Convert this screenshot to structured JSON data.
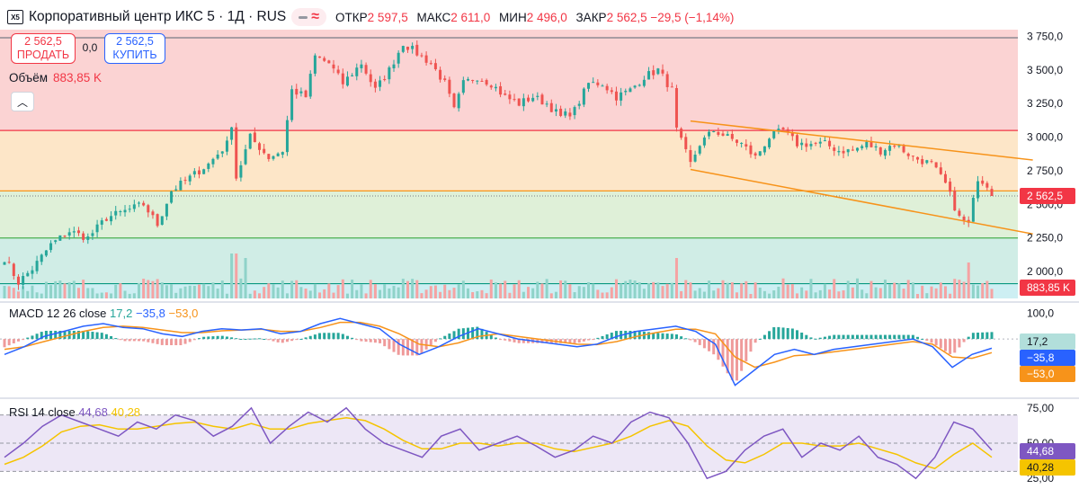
{
  "header": {
    "logo_text": "X5",
    "title": "Корпоративный центр ИКС 5 · 1Д · RUS",
    "ohlc": [
      {
        "key": "ОТКР",
        "value": "2 597,5"
      },
      {
        "key": "МАКС",
        "value": "2 611,0"
      },
      {
        "key": "МИН",
        "value": "2 496,0"
      },
      {
        "key": "ЗАКР",
        "value": "2 562,5 −29,5 (−1,14%)"
      }
    ]
  },
  "trade": {
    "sell_price": "2 562,5",
    "sell_label": "ПРОДАТЬ",
    "buy_price": "2 562,5",
    "buy_label": "КУПИТЬ",
    "spread": "0,0"
  },
  "volume_legend": {
    "label": "Объём",
    "value": "883,85 K"
  },
  "macd_legend": {
    "label": "MACD 12 26 close",
    "hist": "17,2",
    "macd": "−35,8",
    "signal": "−53,0"
  },
  "rsi_legend": {
    "label": "RSI 14 close",
    "rsi": "44,68",
    "ma": "40,28"
  },
  "colors": {
    "up": "#26a69a",
    "down": "#ef5350",
    "accent": "#2962ff",
    "orange": "#f7931a",
    "purple": "#7e57c2",
    "yellow": "#f5c400"
  },
  "chart_data": [
    {
      "type": "candlestick",
      "title": "Корпоративный центр ИКС 5 · 1Д",
      "ylim": [
        1800,
        3800
      ],
      "y_ticks": [
        {
          "value": 3750,
          "label": "3 750,0"
        },
        {
          "value": 3500,
          "label": "3 500,0"
        },
        {
          "value": 3250,
          "label": "3 250,0"
        },
        {
          "value": 3000,
          "label": "3 000,0"
        },
        {
          "value": 2750,
          "label": "2 750,0"
        },
        {
          "value": 2500,
          "label": "2 500,0"
        },
        {
          "value": 2250,
          "label": "2 250,0"
        },
        {
          "value": 2000,
          "label": "2 000,0"
        }
      ],
      "last_price": {
        "value": 2562.5,
        "label": "2 562,5"
      },
      "horizontal_levels": [
        {
          "value": 3740,
          "color": "#787b86"
        },
        {
          "value": 3050,
          "color": "#f23645"
        },
        {
          "value": 2600,
          "color": "#f7931a"
        },
        {
          "value": 2250,
          "color": "#4caf50"
        },
        {
          "value": 1910,
          "color": "#089981"
        }
      ],
      "zones": [
        {
          "from": 3050,
          "to": 3800,
          "color": "#fbd3d3"
        },
        {
          "from": 2600,
          "to": 3050,
          "color": "#fde6c8"
        },
        {
          "from": 2250,
          "to": 2600,
          "color": "#dff0d8"
        },
        {
          "from": 1910,
          "to": 2250,
          "color": "#d0ede6"
        },
        {
          "from": 1800,
          "to": 1910,
          "color": "#cdeff3"
        }
      ],
      "channel_upper": {
        "x": [
          148,
          217
        ],
        "y": [
          3120,
          2830
        ]
      },
      "channel_lower": {
        "x": [
          148,
          217
        ],
        "y": [
          2760,
          2280
        ]
      },
      "anchors": [
        [
          0,
          2100
        ],
        [
          3,
          1920
        ],
        [
          6,
          2020
        ],
        [
          10,
          2200
        ],
        [
          14,
          2300
        ],
        [
          18,
          2250
        ],
        [
          22,
          2400
        ],
        [
          26,
          2450
        ],
        [
          30,
          2500
        ],
        [
          33,
          2350
        ],
        [
          36,
          2600
        ],
        [
          40,
          2700
        ],
        [
          44,
          2800
        ],
        [
          48,
          2950
        ],
        [
          49,
          3100
        ],
        [
          50,
          2700
        ],
        [
          53,
          3000
        ],
        [
          57,
          2850
        ],
        [
          60,
          2900
        ],
        [
          62,
          3350
        ],
        [
          65,
          3300
        ],
        [
          67,
          3600
        ],
        [
          70,
          3550
        ],
        [
          73,
          3400
        ],
        [
          77,
          3550
        ],
        [
          80,
          3350
        ],
        [
          83,
          3500
        ],
        [
          86,
          3700
        ],
        [
          88,
          3650
        ],
        [
          90,
          3600
        ],
        [
          92,
          3550
        ],
        [
          95,
          3400
        ],
        [
          97,
          3200
        ],
        [
          99,
          3400
        ],
        [
          102,
          3450
        ],
        [
          105,
          3400
        ],
        [
          108,
          3300
        ],
        [
          111,
          3250
        ],
        [
          114,
          3300
        ],
        [
          117,
          3250
        ],
        [
          120,
          3150
        ],
        [
          123,
          3200
        ],
        [
          126,
          3400
        ],
        [
          129,
          3400
        ],
        [
          132,
          3300
        ],
        [
          135,
          3350
        ],
        [
          138,
          3450
        ],
        [
          141,
          3500
        ],
        [
          144,
          3350
        ],
        [
          145,
          3050
        ],
        [
          148,
          2800
        ],
        [
          150,
          2950
        ],
        [
          153,
          3050
        ],
        [
          156,
          3000
        ],
        [
          159,
          2950
        ],
        [
          162,
          2850
        ],
        [
          165,
          3000
        ],
        [
          168,
          3050
        ],
        [
          171,
          2950
        ],
        [
          174,
          2950
        ],
        [
          177,
          2950
        ],
        [
          180,
          2900
        ],
        [
          183,
          2900
        ],
        [
          186,
          2950
        ],
        [
          189,
          2900
        ],
        [
          192,
          2950
        ],
        [
          196,
          2850
        ],
        [
          200,
          2800
        ],
        [
          203,
          2650
        ],
        [
          206,
          2400
        ],
        [
          208,
          2350
        ],
        [
          210,
          2700
        ],
        [
          212,
          2650
        ],
        [
          213,
          2562
        ]
      ]
    },
    {
      "type": "volume",
      "value_label": "883,85 K"
    },
    {
      "type": "macd",
      "ylim": [
        -220,
        130
      ],
      "y_ticks": [
        {
          "value": 100,
          "label": "100,0"
        }
      ],
      "last_labels": {
        "hist": "17,2",
        "macd": "−35,8",
        "signal": "−53,0"
      },
      "macd_values": [
        -60,
        -30,
        10,
        30,
        50,
        60,
        45,
        40,
        20,
        10,
        30,
        40,
        35,
        40,
        20,
        30,
        60,
        80,
        60,
        40,
        -20,
        -60,
        -30,
        10,
        40,
        20,
        0,
        -10,
        -20,
        -30,
        -20,
        10,
        30,
        40,
        50,
        30,
        -20,
        -180,
        -120,
        -60,
        -40,
        -60,
        -40,
        -30,
        -20,
        -10,
        0,
        -30,
        -110,
        -60,
        -36
      ],
      "signal_values": [
        -40,
        -30,
        -10,
        10,
        30,
        45,
        50,
        45,
        35,
        25,
        25,
        32,
        35,
        38,
        30,
        30,
        45,
        65,
        65,
        50,
        20,
        -20,
        -30,
        -15,
        10,
        20,
        10,
        0,
        -10,
        -20,
        -22,
        -10,
        10,
        25,
        38,
        38,
        20,
        -70,
        -110,
        -90,
        -65,
        -60,
        -50,
        -40,
        -30,
        -20,
        -10,
        -20,
        -70,
        -75,
        -53
      ]
    },
    {
      "type": "rsi",
      "ylim": [
        20,
        80
      ],
      "y_ticks": [
        {
          "value": 75,
          "label": "75,00"
        },
        {
          "value": 50,
          "label": "50,00"
        },
        {
          "value": 25,
          "label": "25,00"
        }
      ],
      "bands": [
        70,
        50,
        30
      ],
      "last_labels": {
        "rsi": "44,68",
        "ma": "40,28"
      },
      "rsi_values": [
        40,
        50,
        62,
        70,
        65,
        60,
        55,
        65,
        60,
        70,
        66,
        55,
        62,
        75,
        50,
        62,
        72,
        65,
        75,
        60,
        50,
        45,
        40,
        55,
        60,
        45,
        50,
        55,
        48,
        40,
        45,
        55,
        50,
        65,
        72,
        68,
        50,
        25,
        30,
        45,
        55,
        60,
        40,
        50,
        45,
        55,
        40,
        35,
        25,
        40,
        65,
        60,
        45
      ],
      "ma_values": [
        35,
        40,
        48,
        58,
        62,
        63,
        60,
        60,
        62,
        64,
        65,
        62,
        60,
        64,
        60,
        60,
        64,
        66,
        68,
        66,
        60,
        52,
        46,
        46,
        50,
        50,
        48,
        50,
        50,
        46,
        44,
        47,
        50,
        55,
        62,
        66,
        62,
        48,
        38,
        36,
        42,
        50,
        50,
        48,
        48,
        50,
        46,
        42,
        36,
        32,
        42,
        50,
        40
      ]
    }
  ]
}
